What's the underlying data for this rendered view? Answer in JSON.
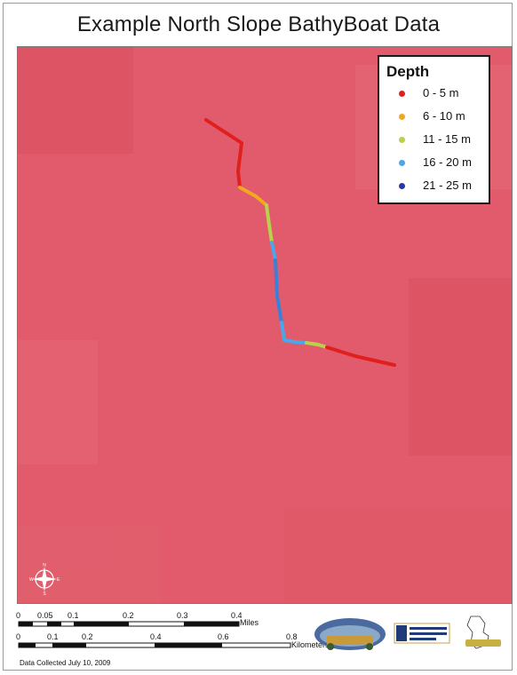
{
  "title": "Example North Slope BathyBoat Data",
  "legend": {
    "title": "Depth",
    "items": [
      {
        "label": "0 - 5 m",
        "color": "#e0201c"
      },
      {
        "label": "6 - 10 m",
        "color": "#f0a81e"
      },
      {
        "label": "11 - 15 m",
        "color": "#b8d24a"
      },
      {
        "label": "16 - 20 m",
        "color": "#4aa8e8"
      },
      {
        "label": "21 - 25 m",
        "color": "#2838a8"
      }
    ]
  },
  "compass": {
    "n": "N",
    "s": "S",
    "e": "E",
    "w": "W"
  },
  "scale": {
    "miles": {
      "ticks": [
        "0",
        "0.05",
        "0.1",
        "0.2",
        "0.3",
        "0.4"
      ],
      "unit": "Miles"
    },
    "kilometers": {
      "ticks": [
        "0",
        "0.1",
        "0.2",
        "0.4",
        "0.6",
        "0.8"
      ],
      "unit": "Kilometers"
    }
  },
  "footer": "Data Collected July 10, 2009",
  "colors": {
    "land": "#e05a6a",
    "lake_deep": "#1a2432",
    "lake_edge": "#2f4a50"
  }
}
